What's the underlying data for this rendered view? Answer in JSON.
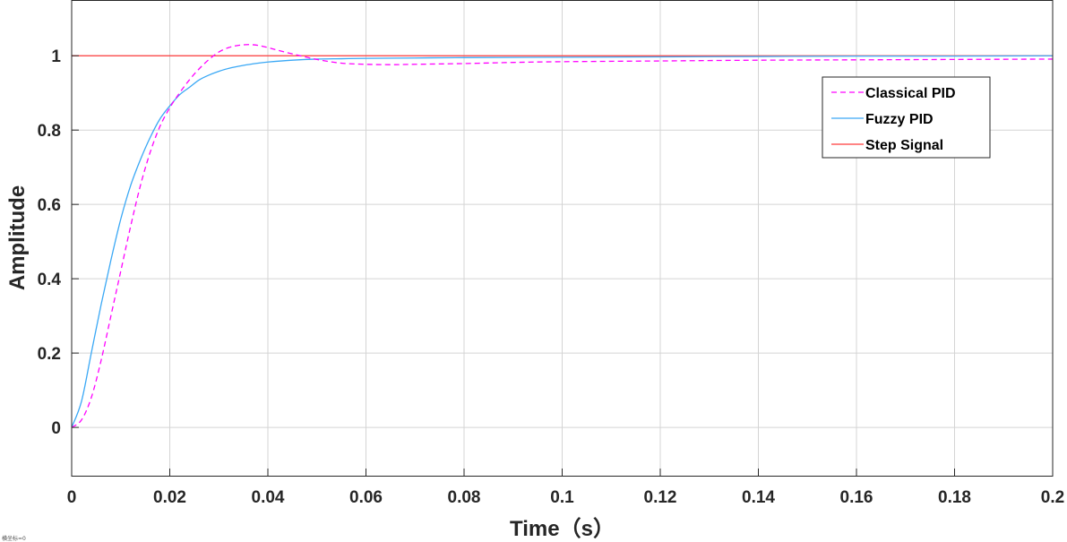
{
  "chart_data": {
    "type": "line",
    "title": "",
    "xlabel": "Time（s）",
    "ylabel": "Amplitude",
    "xlim": [
      0,
      0.2
    ],
    "ylim": [
      -0.13,
      1.15
    ],
    "xticks": [
      0,
      0.02,
      0.04,
      0.06,
      0.08,
      0.1,
      0.12,
      0.14,
      0.16,
      0.18,
      0.2
    ],
    "xtick_labels": [
      "0",
      "0.02",
      "0.04",
      "0.06",
      "0.08",
      "0.1",
      "0.12",
      "0.14",
      "0.16",
      "0.18",
      "0.2"
    ],
    "yticks": [
      0,
      0.2,
      0.4,
      0.6,
      0.8,
      1
    ],
    "ytick_labels": [
      "0",
      "0.2",
      "0.4",
      "0.6",
      "0.8",
      "1"
    ],
    "grid": true,
    "legend_position": "top-right",
    "series": [
      {
        "name": "Classical PID",
        "color": "#ff00ff",
        "dash": "dashed",
        "x": [
          0,
          0.002,
          0.004,
          0.006,
          0.008,
          0.01,
          0.012,
          0.014,
          0.016,
          0.018,
          0.02,
          0.022,
          0.024,
          0.026,
          0.028,
          0.03,
          0.032,
          0.034,
          0.036,
          0.038,
          0.04,
          0.042,
          0.045,
          0.05,
          0.055,
          0.06,
          0.065,
          0.07,
          0.08,
          0.09,
          0.1,
          0.12,
          0.14,
          0.16,
          0.18,
          0.2
        ],
        "y": [
          0,
          0.02,
          0.08,
          0.18,
          0.3,
          0.42,
          0.54,
          0.65,
          0.74,
          0.81,
          0.86,
          0.9,
          0.935,
          0.965,
          0.99,
          1.01,
          1.022,
          1.028,
          1.03,
          1.028,
          1.022,
          1.015,
          1.005,
          0.99,
          0.98,
          0.977,
          0.976,
          0.977,
          0.979,
          0.982,
          0.984,
          0.986,
          0.988,
          0.989,
          0.99,
          0.991
        ]
      },
      {
        "name": "Fuzzy PID",
        "color": "#3aa8f5",
        "dash": "solid",
        "x": [
          0,
          0.002,
          0.004,
          0.006,
          0.008,
          0.01,
          0.012,
          0.014,
          0.016,
          0.018,
          0.02,
          0.022,
          0.024,
          0.026,
          0.028,
          0.03,
          0.032,
          0.035,
          0.038,
          0.04,
          0.045,
          0.05,
          0.055,
          0.06,
          0.07,
          0.08,
          0.1,
          0.12,
          0.14,
          0.16,
          0.18,
          0.2
        ],
        "y": [
          0,
          0.07,
          0.2,
          0.33,
          0.45,
          0.56,
          0.65,
          0.72,
          0.78,
          0.83,
          0.865,
          0.895,
          0.915,
          0.935,
          0.948,
          0.958,
          0.966,
          0.974,
          0.98,
          0.983,
          0.988,
          0.991,
          0.992,
          0.993,
          0.994,
          0.995,
          0.996,
          0.997,
          0.998,
          0.999,
          0.999,
          1.0
        ]
      },
      {
        "name": "Step Signal",
        "color": "#ff3b3b",
        "dash": "solid",
        "x": [
          0,
          0.2
        ],
        "y": [
          1,
          1
        ]
      }
    ]
  },
  "footer_note": "横坐标=0"
}
